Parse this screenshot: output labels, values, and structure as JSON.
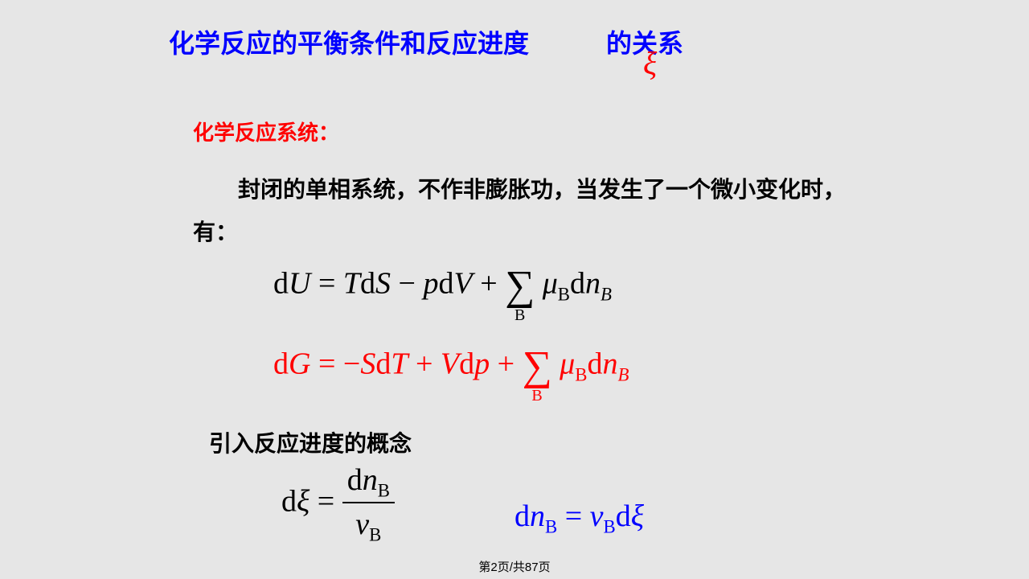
{
  "title_part1": "化学反应的平衡条件和反应进度",
  "title_part2": "的关系",
  "xi": "ξ",
  "subtitle": "化学反应系统：",
  "body": "封闭的单相系统，不作非膨胀功，当发生了一个微小变化时，有：",
  "eq1_html": "d<span class='it'>U</span> = <span class='it'>T</span>d<span class='it'>S</span> − <span class='it'>p</span>d<span class='it'>V</span> + <span class='sum'>∑<span class='sum-sub'>B</span></span> <span class='it'>μ</span><span class='sub'>B</span>d<span class='it'>n</span><span class='sub it'>B</span>",
  "eq2_html": "d<span class='it'>G</span> = −<span class='it'>S</span>d<span class='it'>T</span> + <span class='it'>V</span>d<span class='it'>p</span> + <span class='sum'>∑<span class='sum-sub'>B</span></span> <span class='it'>μ</span><span class='sub'>B</span>d<span class='it'>n</span><span class='sub it'>B</span>",
  "intro": "引入反应进度的概念",
  "eq3_html": "d<span class='it'>ξ</span> = <span class='frac'><span class='num'>d<span class='it'>n</span><span class='sub'>B</span></span><span class='den'><span class='it'>ν</span><span class='sub'>B</span></span></span>",
  "eq4_html": "d<span class='it'>n</span><span class='sub'>B</span> = <span class='it'>ν</span><span class='sub'>B</span>d<span class='it'>ξ</span>",
  "page": "第2页/共87页",
  "colors": {
    "background": "#e6e6e6",
    "title": "#0000ff",
    "red": "#ff0000",
    "black": "#000000",
    "blue": "#0000ff"
  }
}
